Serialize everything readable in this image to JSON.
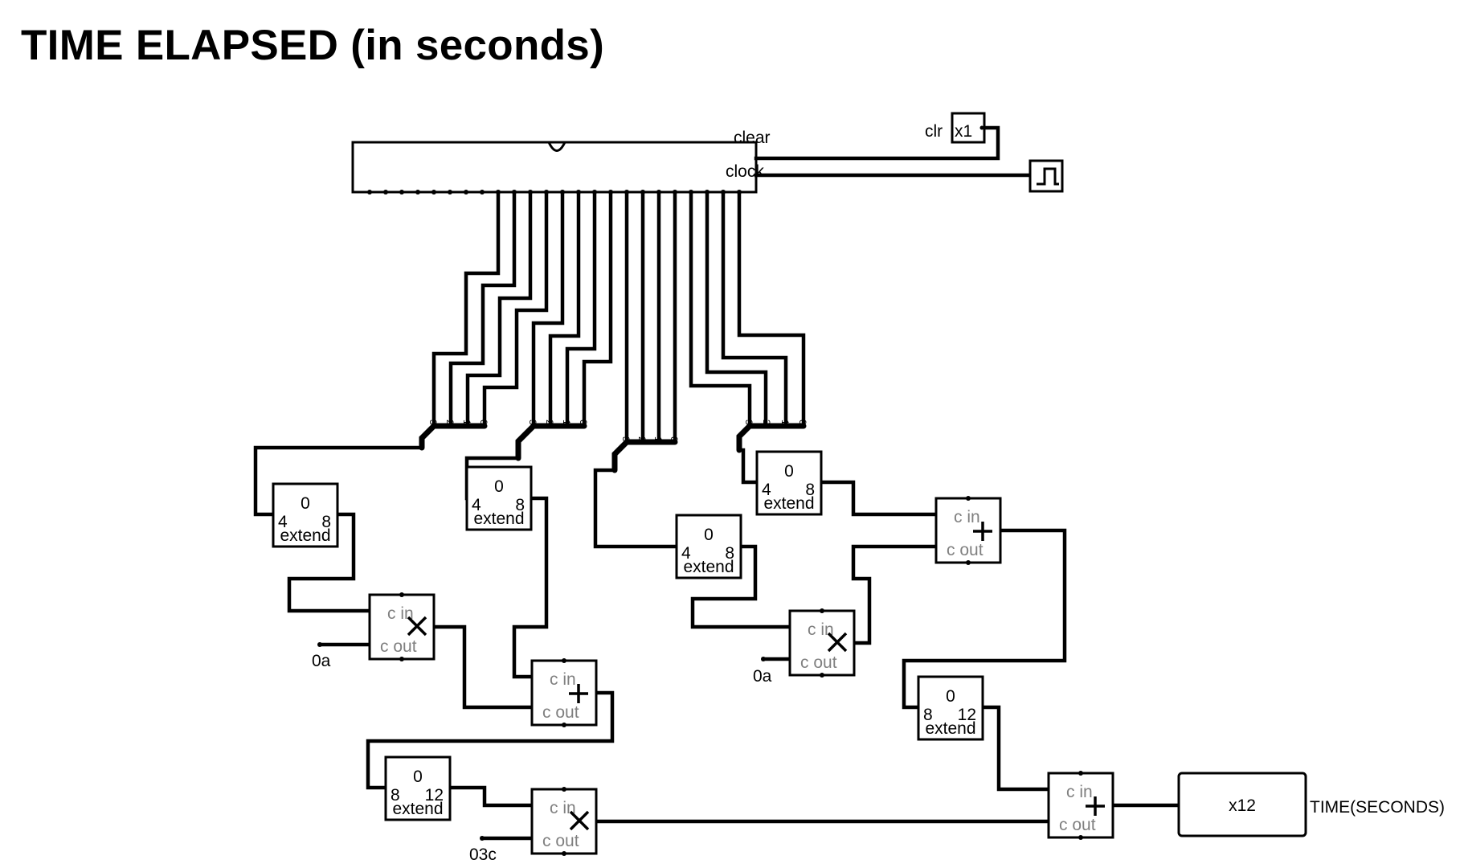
{
  "title": "TIME ELAPSED (in seconds)",
  "counter": {
    "clear_label": "clear",
    "clock_label": "clock"
  },
  "clear_input": {
    "name": "clr",
    "value": "x1"
  },
  "splitters": [
    {
      "bits": [
        "3",
        "2",
        "1",
        "0"
      ]
    },
    {
      "bits": [
        "3",
        "2",
        "1",
        "0"
      ]
    },
    {
      "bits": [
        "3",
        "2",
        "1",
        "0"
      ]
    },
    {
      "bits": [
        "3",
        "2",
        "1",
        "0"
      ]
    }
  ],
  "extenders": [
    {
      "top": "0",
      "in": "4",
      "out": "8",
      "label": "extend"
    },
    {
      "top": "0",
      "in": "4",
      "out": "8",
      "label": "extend"
    },
    {
      "top": "0",
      "in": "4",
      "out": "8",
      "label": "extend"
    },
    {
      "top": "0",
      "in": "4",
      "out": "8",
      "label": "extend"
    },
    {
      "top": "0",
      "in": "8",
      "out": "12",
      "label": "extend"
    },
    {
      "top": "0",
      "in": "8",
      "out": "12",
      "label": "extend"
    }
  ],
  "arith": {
    "cin": "c in",
    "cout": "c out"
  },
  "constants": [
    "0a",
    "0a",
    "03c"
  ],
  "output": {
    "value": "x12",
    "label": "TIME(SECONDS)"
  }
}
